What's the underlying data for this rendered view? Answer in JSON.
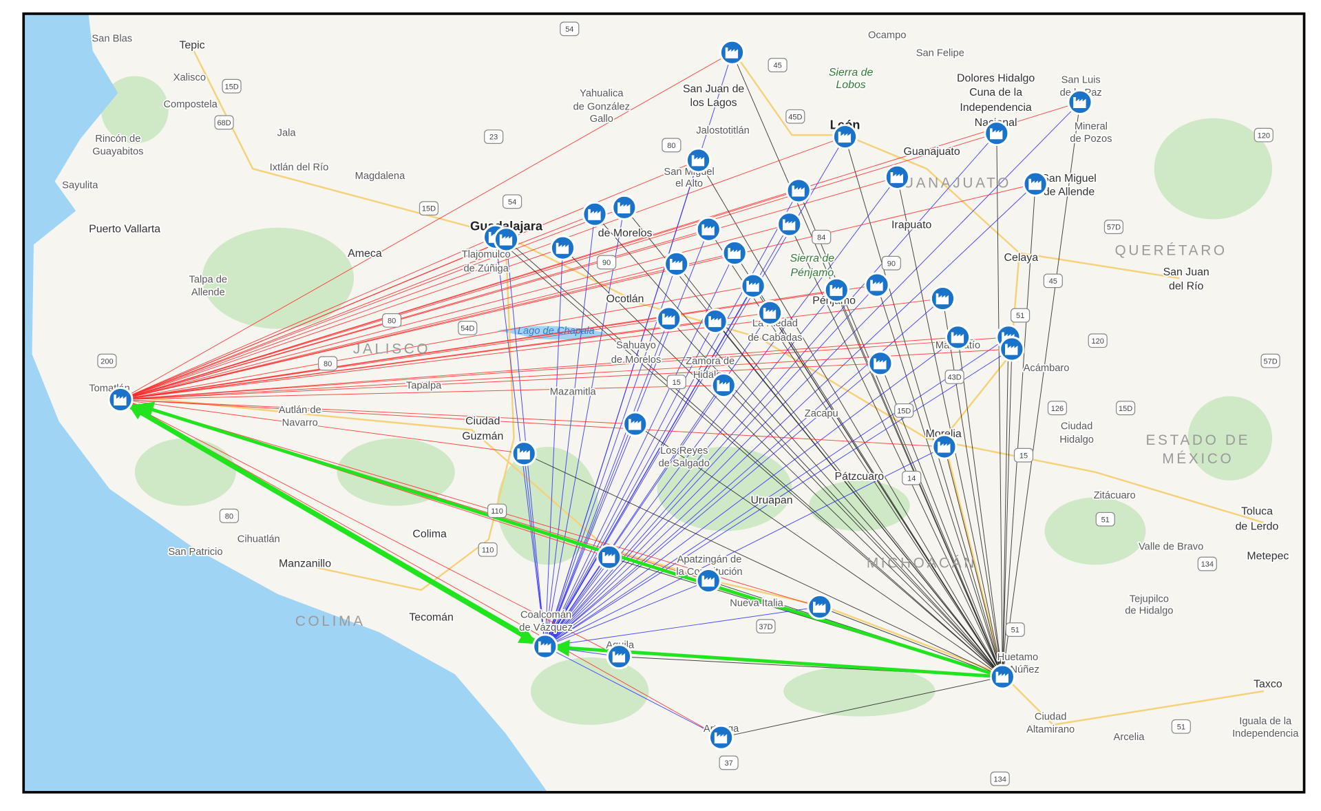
{
  "map": {
    "places": [
      "San Blas",
      "Tepic",
      "Xalisco",
      "Compostela",
      "Jala",
      "Rincón de",
      "Guayabitos",
      "Ixtlán del Río",
      "Magdalena",
      "Sayulita",
      "Puerto Vallarta",
      "Ameca",
      "Talpa de",
      "Allende",
      "Guadalajara",
      "Tlajomulco",
      "de Zúñiga",
      "Yahualica",
      "de González",
      "Gallo",
      "San Juan de",
      "los Lagos",
      "Jalostotitlán",
      "San Miguel",
      "el Alto",
      "Ocampo",
      "San Felipe",
      "Sierra de",
      "Lobos",
      "Dolores Hidalgo",
      "Cuna de la",
      "Independencia",
      "Nacional",
      "San Luis",
      "de la Paz",
      "Mineral",
      "de Pozos",
      "León",
      "Guanajuato",
      "GUANAJUATO",
      "San Miguel",
      "de Allende",
      "Irapuato",
      "Celaya",
      "QUERÉTARO",
      "San Juan",
      "del Río",
      "Sierra de",
      "Pénjamo",
      "Pénjamo",
      "de Morelos",
      "Ocotlán",
      "Lago de Chapala",
      "JALISCO",
      "Sahuayo",
      "de Morelos",
      "Zamora de",
      "Hidalgo",
      "La Piedad",
      "de Cabadas",
      "Tomatlán",
      "Tapalpa",
      "Mazamitla",
      "Autlán de",
      "Navarro",
      "Ciudad",
      "Guzmán",
      "Zacapu",
      "Morelia",
      "Maravatío",
      "Acámbaro",
      "Ciudad",
      "Hidalgo",
      "ESTADO DE",
      "MÉXICO",
      "Los Reyes",
      "de Salgado",
      "Pátzcuaro",
      "Uruapan",
      "Zitácuaro",
      "Toluca",
      "de Lerdo",
      "Cihuatlán",
      "San Patricio",
      "Colima",
      "Manzanillo",
      "Valle de Bravo",
      "Metepec",
      "MICHOACÁN",
      "Apatzingán de",
      "la Constitución",
      "Nueva Italia",
      "COLIMA",
      "Tecomán",
      "Coalcomán",
      "de Vázquez",
      "Aquila",
      "Tejupilco",
      "de Hidalgo",
      "Huetamo",
      "de Núñez",
      "Taxco",
      "Ciudad",
      "Altamirano",
      "Arcelia",
      "Iguala de la",
      "Independencia",
      "Arteaga"
    ],
    "roads": [
      "54",
      "45",
      "15D",
      "68D",
      "23",
      "80",
      "45D",
      "15D",
      "54",
      "84",
      "90",
      "90",
      "80",
      "54D",
      "200",
      "80",
      "15",
      "43D",
      "15D",
      "126",
      "15D",
      "57D",
      "120",
      "57D",
      "51",
      "15",
      "14",
      "110",
      "80",
      "110",
      "51",
      "37D",
      "134",
      "51",
      "51",
      "37",
      "134",
      "120",
      "45"
    ]
  }
}
